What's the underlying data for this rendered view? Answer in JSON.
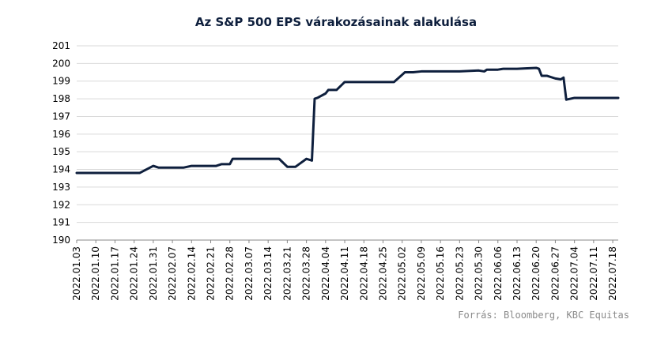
{
  "chart_data": {
    "type": "line",
    "title": "Az S&P 500 EPS várakozásainak alakulása",
    "xlabel": "",
    "ylabel": "",
    "ylim": [
      190,
      201
    ],
    "yticks": [
      190,
      191,
      192,
      193,
      194,
      195,
      196,
      197,
      198,
      199,
      200,
      201
    ],
    "grid": "horizontal",
    "x_tick_labels": [
      "2022.01.03",
      "2022.01.10",
      "2022.01.17",
      "2022.01.24",
      "2022.01.31",
      "2022.02.07",
      "2022.02.14",
      "2022.02.21",
      "2022.02.28",
      "2022.03.07",
      "2022.03.14",
      "2022.03.21",
      "2022.03.28",
      "2022.04.04",
      "2022.04.11",
      "2022.04.18",
      "2022.04.25",
      "2022.05.02",
      "2022.05.09",
      "2022.05.16",
      "2022.05.23",
      "2022.05.30",
      "2022.06.06",
      "2022.06.13",
      "2022.06.20",
      "2022.06.27",
      "2022.07.04",
      "2022.07.11",
      "2022.07.18"
    ],
    "series": [
      {
        "color": "#0e1f3d",
        "points": [
          [
            "2022.01.03",
            193.8
          ],
          [
            "2022.01.10",
            193.8
          ],
          [
            "2022.01.17",
            193.8
          ],
          [
            "2022.01.24",
            193.8
          ],
          [
            "2022.01.26",
            193.8
          ],
          [
            "2022.01.31",
            194.2
          ],
          [
            "2022.02.02",
            194.1
          ],
          [
            "2022.02.07",
            194.1
          ],
          [
            "2022.02.11",
            194.1
          ],
          [
            "2022.02.14",
            194.2
          ],
          [
            "2022.02.21",
            194.2
          ],
          [
            "2022.02.23",
            194.2
          ],
          [
            "2022.02.25",
            194.3
          ],
          [
            "2022.02.28",
            194.3
          ],
          [
            "2022.03.01",
            194.6
          ],
          [
            "2022.03.07",
            194.6
          ],
          [
            "2022.03.14",
            194.6
          ],
          [
            "2022.03.18",
            194.6
          ],
          [
            "2022.03.21",
            194.15
          ],
          [
            "2022.03.24",
            194.15
          ],
          [
            "2022.03.28",
            194.6
          ],
          [
            "2022.03.30",
            194.5
          ],
          [
            "2022.03.31",
            198.0
          ],
          [
            "2022.04.01",
            198.05
          ],
          [
            "2022.04.04",
            198.3
          ],
          [
            "2022.04.05",
            198.5
          ],
          [
            "2022.04.08",
            198.5
          ],
          [
            "2022.04.11",
            198.95
          ],
          [
            "2022.04.18",
            198.95
          ],
          [
            "2022.04.25",
            198.95
          ],
          [
            "2022.04.29",
            198.95
          ],
          [
            "2022.05.03",
            199.5
          ],
          [
            "2022.05.06",
            199.5
          ],
          [
            "2022.05.09",
            199.55
          ],
          [
            "2022.05.16",
            199.55
          ],
          [
            "2022.05.23",
            199.55
          ],
          [
            "2022.05.30",
            199.6
          ],
          [
            "2022.06.01",
            199.55
          ],
          [
            "2022.06.02",
            199.65
          ],
          [
            "2022.06.06",
            199.65
          ],
          [
            "2022.06.08",
            199.7
          ],
          [
            "2022.06.13",
            199.7
          ],
          [
            "2022.06.16",
            199.72
          ],
          [
            "2022.06.20",
            199.75
          ],
          [
            "2022.06.21",
            199.7
          ],
          [
            "2022.06.22",
            199.3
          ],
          [
            "2022.06.24",
            199.3
          ],
          [
            "2022.06.27",
            199.15
          ],
          [
            "2022.06.29",
            199.1
          ],
          [
            "2022.06.30",
            199.2
          ],
          [
            "2022.07.01",
            197.95
          ],
          [
            "2022.07.04",
            198.05
          ],
          [
            "2022.07.11",
            198.05
          ],
          [
            "2022.07.18",
            198.05
          ],
          [
            "2022.07.20",
            198.05
          ]
        ]
      }
    ]
  },
  "source_note": "Forrás: Bloomberg, KBC Equitas"
}
